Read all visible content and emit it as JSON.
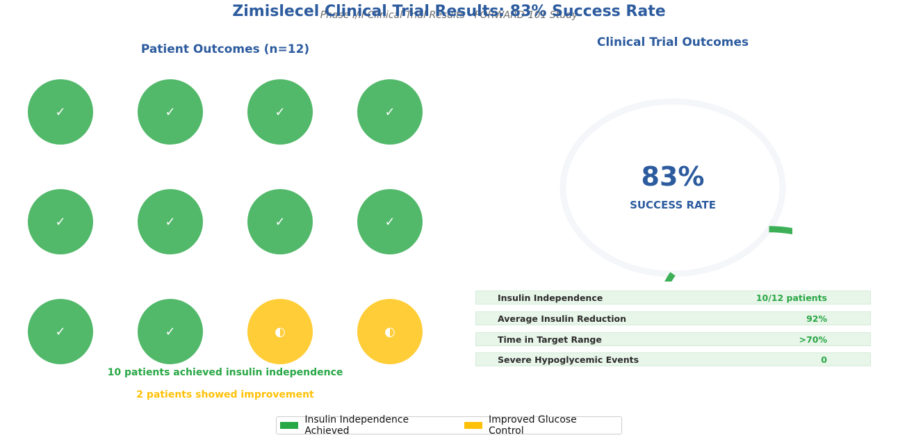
{
  "title": "Zimislecel Clinical Trial Results: 83% Success Rate",
  "subtitle": "Phase I/II Clinical Trial Results - FORWARD-101 Study",
  "colors": {
    "success": "#28a745",
    "improved": "#ffc107",
    "title": "#2c5b9e",
    "gauge_track": "#f4f6f9",
    "row_bg": "#e8f5e9"
  },
  "chart_data": [
    {
      "type": "table",
      "title": "Patient Outcomes (n=12)",
      "patients": [
        {
          "status": "success",
          "symbol": "✓"
        },
        {
          "status": "success",
          "symbol": "✓"
        },
        {
          "status": "success",
          "symbol": "✓"
        },
        {
          "status": "success",
          "symbol": "✓"
        },
        {
          "status": "success",
          "symbol": "✓"
        },
        {
          "status": "success",
          "symbol": "✓"
        },
        {
          "status": "success",
          "symbol": "✓"
        },
        {
          "status": "success",
          "symbol": "✓"
        },
        {
          "status": "success",
          "symbol": "✓"
        },
        {
          "status": "success",
          "symbol": "✓"
        },
        {
          "status": "improved",
          "symbol": "◐"
        },
        {
          "status": "improved",
          "symbol": "◐"
        }
      ],
      "summary_success": "10 patients achieved insulin independence",
      "summary_improved": "2 patients showed improvement",
      "legend": [
        {
          "label": "Insulin Independence Achieved",
          "status": "success"
        },
        {
          "label": "Improved Glucose Control",
          "status": "improved"
        }
      ]
    },
    {
      "type": "pie",
      "title": "Clinical Trial Outcomes",
      "value_percent": 83,
      "value_label": "83%",
      "caption": "SUCCESS RATE",
      "metrics": [
        {
          "label": "Insulin Independence",
          "value": "10/12 patients"
        },
        {
          "label": "Average Insulin Reduction",
          "value": "92%"
        },
        {
          "label": "Time in Target Range",
          "value": ">70%"
        },
        {
          "label": "Severe Hypoglycemic Events",
          "value": "0"
        }
      ]
    }
  ]
}
